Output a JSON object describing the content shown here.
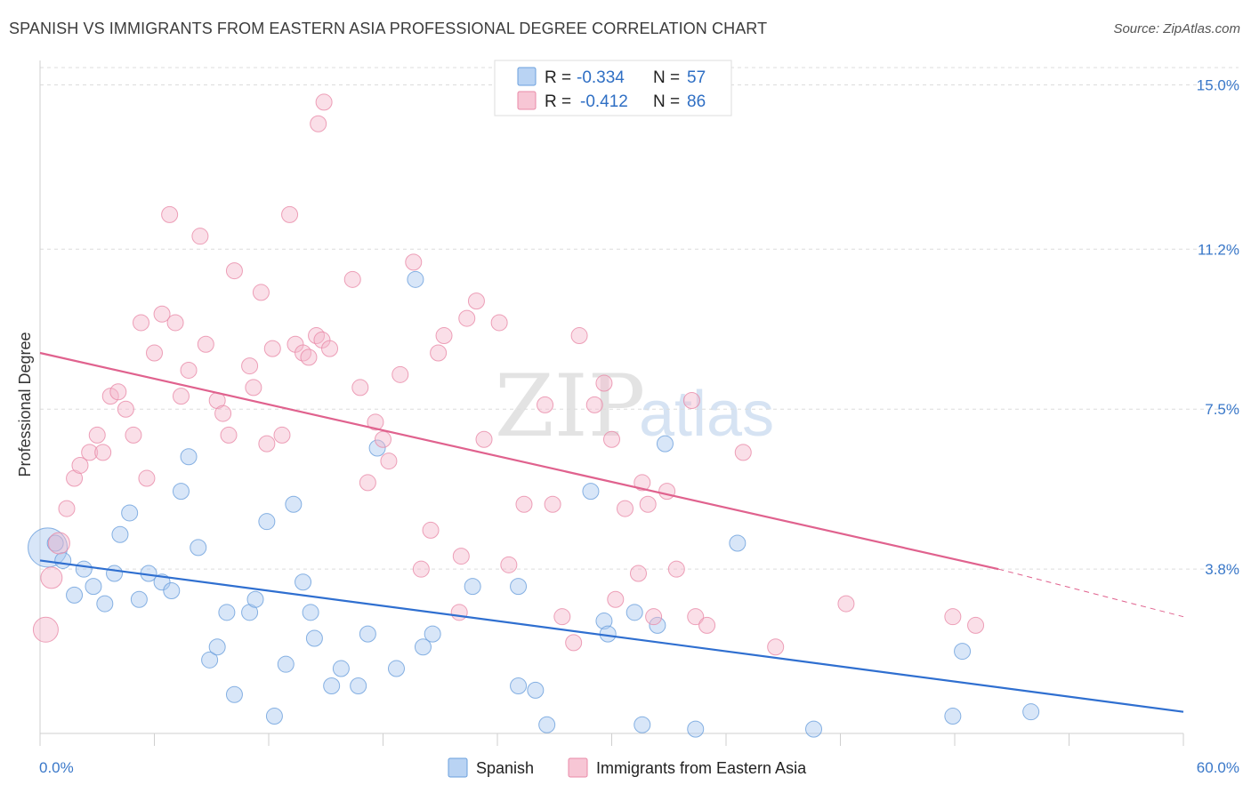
{
  "title": "SPANISH VS IMMIGRANTS FROM EASTERN ASIA PROFESSIONAL DEGREE CORRELATION CHART",
  "source": "Source: ZipAtlas.com",
  "watermark": {
    "zip": "ZIP",
    "atlas": "atlas"
  },
  "legend_top": [
    {
      "r_label": "R =",
      "r_value": "-0.334",
      "n_label": "N =",
      "n_value": "57",
      "color": "#a8c8f0"
    },
    {
      "r_label": "R =",
      "r_value": "-0.412",
      "n_label": "N =",
      "n_value": "86",
      "color": "#f5b8cb"
    }
  ],
  "legend_bottom": [
    {
      "label": "Spanish",
      "color": "#a8c8f0"
    },
    {
      "label": "Immigrants from Eastern Asia",
      "color": "#f5b8cb"
    }
  ],
  "chart_data": {
    "type": "scatter",
    "ylabel": "Professional Degree",
    "xlim": [
      0,
      60
    ],
    "ylim": [
      0,
      15.4
    ],
    "x_tick_labels": [
      "0.0%",
      "60.0%"
    ],
    "y_ticks": [
      3.8,
      7.5,
      11.2,
      15.0
    ],
    "y_tick_labels": [
      "3.8%",
      "7.5%",
      "11.2%",
      "15.0%"
    ],
    "grid": true,
    "series": [
      {
        "name": "Spanish",
        "color": "#a8c8f0",
        "stroke": "#6a9fdc",
        "line_color": "#2f6fd0",
        "trend": {
          "x": [
            0,
            60
          ],
          "y": [
            4.0,
            0.5
          ]
        },
        "points": [
          [
            0.4,
            4.3,
            22
          ],
          [
            1.2,
            4.0,
            9
          ],
          [
            0.8,
            4.4,
            9
          ],
          [
            2.3,
            3.8,
            9
          ],
          [
            1.8,
            3.2,
            9
          ],
          [
            2.8,
            3.4,
            9
          ],
          [
            3.4,
            3.0,
            9
          ],
          [
            3.9,
            3.7,
            9
          ],
          [
            4.2,
            4.6,
            9
          ],
          [
            4.7,
            5.1,
            9
          ],
          [
            5.2,
            3.1,
            9
          ],
          [
            5.7,
            3.7,
            9
          ],
          [
            6.4,
            3.5,
            9
          ],
          [
            6.9,
            3.3,
            9
          ],
          [
            7.4,
            5.6,
            9
          ],
          [
            7.8,
            6.4,
            9
          ],
          [
            8.3,
            4.3,
            9
          ],
          [
            8.9,
            1.7,
            9
          ],
          [
            9.3,
            2.0,
            9
          ],
          [
            9.8,
            2.8,
            9
          ],
          [
            10.2,
            0.9,
            9
          ],
          [
            11.0,
            2.8,
            9
          ],
          [
            11.3,
            3.1,
            9
          ],
          [
            11.9,
            4.9,
            9
          ],
          [
            12.3,
            0.4,
            9
          ],
          [
            12.9,
            1.6,
            9
          ],
          [
            13.3,
            5.3,
            9
          ],
          [
            13.8,
            3.5,
            9
          ],
          [
            14.2,
            2.8,
            9
          ],
          [
            14.4,
            2.2,
            9
          ],
          [
            15.3,
            1.1,
            9
          ],
          [
            15.8,
            1.5,
            9
          ],
          [
            16.7,
            1.1,
            9
          ],
          [
            17.2,
            2.3,
            9
          ],
          [
            17.7,
            6.6,
            9
          ],
          [
            18.7,
            1.5,
            9
          ],
          [
            20.1,
            2.0,
            9
          ],
          [
            20.6,
            2.3,
            9
          ],
          [
            19.7,
            10.5,
            9
          ],
          [
            22.7,
            3.4,
            9
          ],
          [
            25.1,
            3.4,
            9
          ],
          [
            25.1,
            1.1,
            9
          ],
          [
            26.0,
            1.0,
            9
          ],
          [
            26.6,
            0.2,
            9
          ],
          [
            28.9,
            5.6,
            9
          ],
          [
            29.6,
            2.6,
            9
          ],
          [
            29.8,
            2.3,
            9
          ],
          [
            31.2,
            2.8,
            9
          ],
          [
            31.6,
            0.2,
            9
          ],
          [
            32.4,
            2.5,
            9
          ],
          [
            32.8,
            6.7,
            9
          ],
          [
            34.4,
            0.1,
            9
          ],
          [
            36.6,
            4.4,
            9
          ],
          [
            40.6,
            0.1,
            9
          ],
          [
            47.9,
            0.4,
            9
          ],
          [
            48.4,
            1.9,
            9
          ],
          [
            52.0,
            0.5,
            9
          ]
        ]
      },
      {
        "name": "Immigrants from Eastern Asia",
        "color": "#f5b8cb",
        "stroke": "#e98aa8",
        "line_color": "#e0628e",
        "trend": {
          "x": [
            0,
            50.3
          ],
          "y": [
            8.8,
            3.8
          ]
        },
        "trend_dashed": {
          "x": [
            50.3,
            60
          ],
          "y": [
            3.8,
            2.7
          ]
        },
        "points": [
          [
            0.3,
            2.4,
            14
          ],
          [
            0.6,
            3.6,
            12
          ],
          [
            1.0,
            4.4,
            12
          ],
          [
            1.4,
            5.2,
            9
          ],
          [
            1.8,
            5.9,
            9
          ],
          [
            2.1,
            6.2,
            9
          ],
          [
            2.6,
            6.5,
            9
          ],
          [
            3.0,
            6.9,
            9
          ],
          [
            3.3,
            6.5,
            9
          ],
          [
            3.7,
            7.8,
            9
          ],
          [
            4.1,
            7.9,
            9
          ],
          [
            4.5,
            7.5,
            9
          ],
          [
            4.9,
            6.9,
            9
          ],
          [
            5.3,
            9.5,
            9
          ],
          [
            5.6,
            5.9,
            9
          ],
          [
            6.0,
            8.8,
            9
          ],
          [
            6.4,
            9.7,
            9
          ],
          [
            7.1,
            9.5,
            9
          ],
          [
            7.4,
            7.8,
            9
          ],
          [
            7.8,
            8.4,
            9
          ],
          [
            6.8,
            12.0,
            9
          ],
          [
            8.4,
            11.5,
            9
          ],
          [
            8.7,
            9.0,
            9
          ],
          [
            9.3,
            7.7,
            9
          ],
          [
            9.6,
            7.4,
            9
          ],
          [
            9.9,
            6.9,
            9
          ],
          [
            10.2,
            10.7,
            9
          ],
          [
            11.0,
            8.5,
            9
          ],
          [
            11.2,
            8.0,
            9
          ],
          [
            11.6,
            10.2,
            9
          ],
          [
            11.9,
            6.7,
            9
          ],
          [
            12.2,
            8.9,
            9
          ],
          [
            12.7,
            6.9,
            9
          ],
          [
            13.1,
            12.0,
            9
          ],
          [
            13.4,
            9.0,
            9
          ],
          [
            13.8,
            8.8,
            9
          ],
          [
            14.1,
            8.7,
            9
          ],
          [
            14.5,
            9.2,
            9
          ],
          [
            14.8,
            9.1,
            9
          ],
          [
            14.6,
            14.1,
            9
          ],
          [
            14.9,
            14.6,
            9
          ],
          [
            15.2,
            8.9,
            9
          ],
          [
            16.4,
            10.5,
            9
          ],
          [
            16.8,
            8.0,
            9
          ],
          [
            17.2,
            5.8,
            9
          ],
          [
            17.6,
            7.2,
            9
          ],
          [
            18.0,
            6.8,
            9
          ],
          [
            18.3,
            6.3,
            9
          ],
          [
            18.9,
            8.3,
            9
          ],
          [
            19.6,
            10.9,
            9
          ],
          [
            20.0,
            3.8,
            9
          ],
          [
            20.5,
            4.7,
            9
          ],
          [
            20.9,
            8.8,
            9
          ],
          [
            21.2,
            9.2,
            9
          ],
          [
            22.1,
            4.1,
            9
          ],
          [
            22.4,
            9.6,
            9
          ],
          [
            22.9,
            10.0,
            9
          ],
          [
            22.0,
            2.8,
            9
          ],
          [
            23.3,
            6.8,
            9
          ],
          [
            24.1,
            9.5,
            9
          ],
          [
            24.6,
            3.9,
            9
          ],
          [
            25.4,
            5.3,
            9
          ],
          [
            26.5,
            7.6,
            9
          ],
          [
            26.9,
            5.3,
            9
          ],
          [
            27.4,
            2.7,
            9
          ],
          [
            28.0,
            2.1,
            9
          ],
          [
            28.3,
            9.2,
            9
          ],
          [
            29.1,
            7.6,
            9
          ],
          [
            29.6,
            8.1,
            9
          ],
          [
            30.0,
            6.8,
            9
          ],
          [
            30.2,
            3.1,
            9
          ],
          [
            30.7,
            5.2,
            9
          ],
          [
            31.4,
            3.7,
            9
          ],
          [
            31.6,
            5.8,
            9
          ],
          [
            31.9,
            5.3,
            9
          ],
          [
            32.2,
            2.7,
            9
          ],
          [
            32.9,
            5.6,
            9
          ],
          [
            33.4,
            3.8,
            9
          ],
          [
            34.2,
            7.7,
            9
          ],
          [
            34.4,
            2.7,
            9
          ],
          [
            35.0,
            2.5,
            9
          ],
          [
            36.9,
            6.5,
            9
          ],
          [
            38.6,
            2.0,
            9
          ],
          [
            42.3,
            3.0,
            9
          ],
          [
            47.9,
            2.7,
            9
          ],
          [
            49.1,
            2.5,
            9
          ]
        ]
      }
    ]
  }
}
